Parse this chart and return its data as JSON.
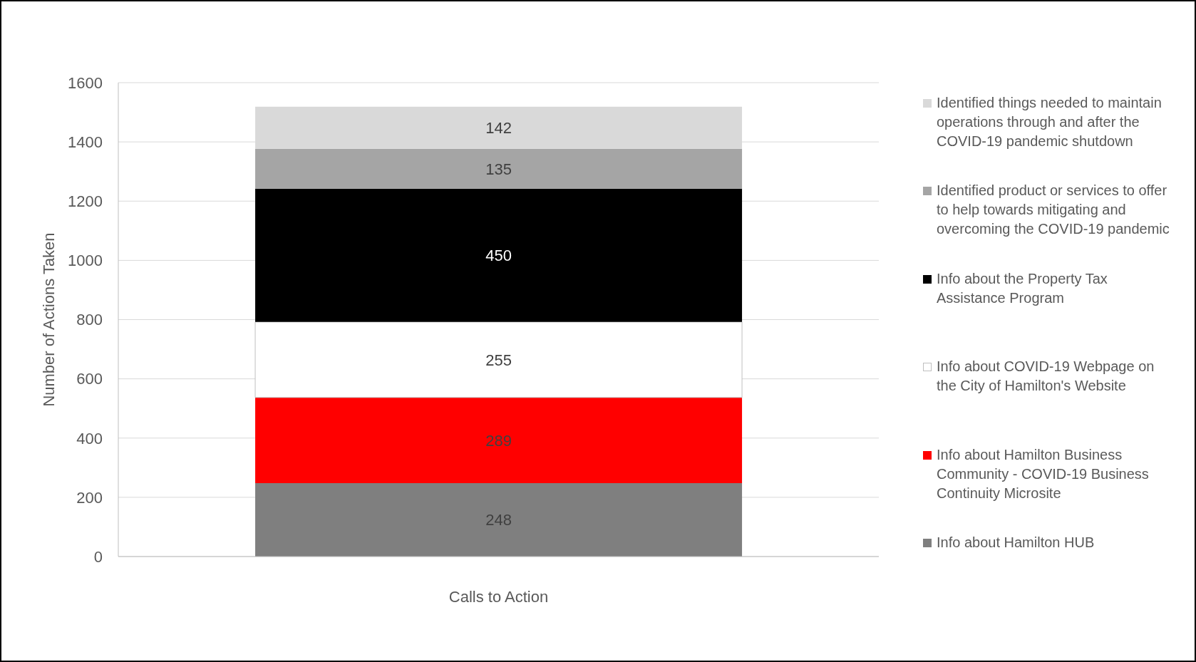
{
  "chart_data": {
    "type": "bar",
    "xlabel": "Calls to Action",
    "ylabel": "Number of Actions Taken",
    "categories": [
      null
    ],
    "series": [
      {
        "name": "Info about Hamilton HUB",
        "color": "#7f7f7f",
        "values": [
          248
        ]
      },
      {
        "name": "Info about Hamilton Business Community - COVID-19 Business Continuity Microsite",
        "color": "#ff0000",
        "values": [
          289
        ]
      },
      {
        "name": "Info about COVID-19 Webpage on the City of Hamilton's Website",
        "color": "#ffffff",
        "values": [
          255
        ]
      },
      {
        "name": "Info about the Property Tax Assistance Program",
        "color": "#000000",
        "values": [
          450
        ]
      },
      {
        "name": "Identified product or services to offer to help towards mitigating and overcoming the COVID-19 pandemic",
        "color": "#a5a5a5",
        "values": [
          135
        ]
      },
      {
        "name": "Identified things needed to maintain operations through and after the COVID-19 pandemic shutdown",
        "color": "#d9d9d9",
        "values": [
          142
        ]
      }
    ],
    "stacked": true,
    "ylim": [
      0,
      1600
    ],
    "yticks": [
      0,
      200,
      400,
      600,
      800,
      1000,
      1200,
      1400,
      1600
    ],
    "grid": "y",
    "legend": "right",
    "data_labels": true
  }
}
